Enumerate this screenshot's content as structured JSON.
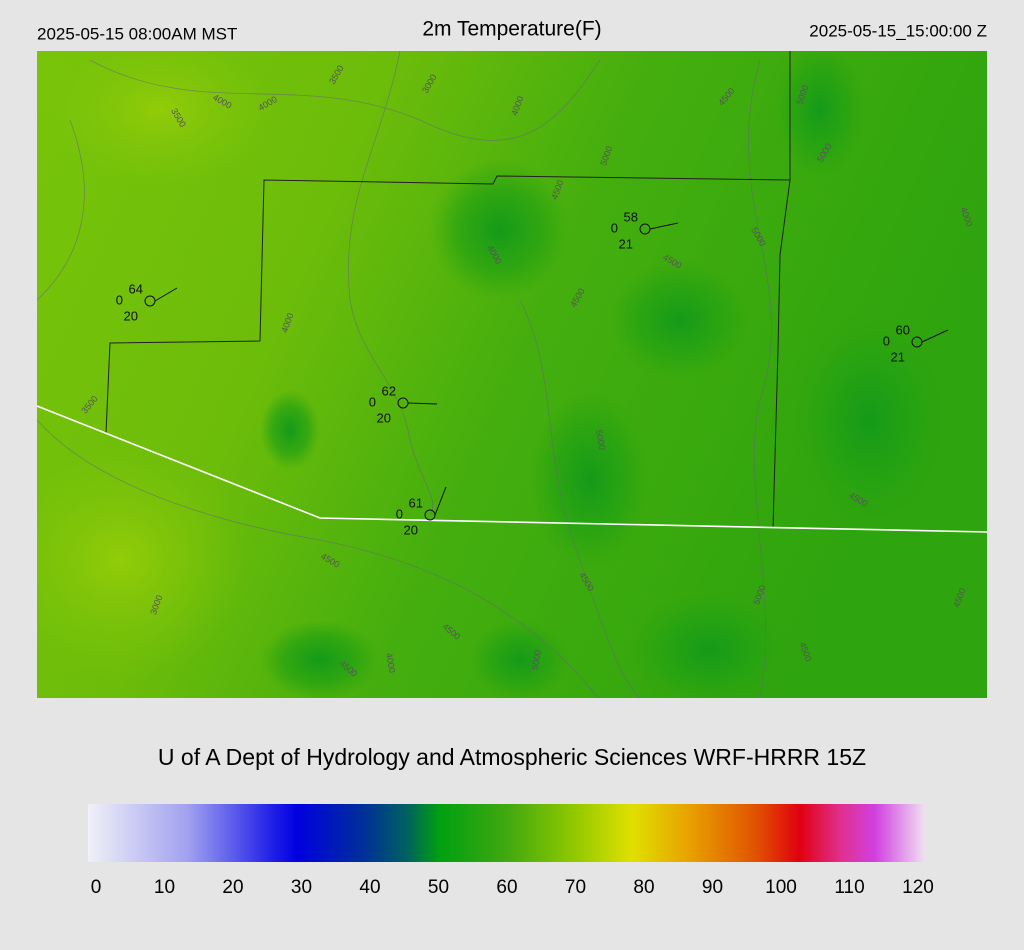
{
  "header": {
    "left": "2025-05-15 08:00AM MST",
    "title": "2m Temperature(F)",
    "right": "2025-05-15_15:00:00 Z"
  },
  "credit": "U of A Dept of Hydrology and Atmospheric Sciences WRF-HRRR 15Z",
  "colorbar": {
    "range": [
      0,
      120
    ],
    "ticks": [
      0,
      10,
      20,
      30,
      40,
      50,
      60,
      70,
      80,
      90,
      100,
      110,
      120
    ]
  },
  "stations": [
    {
      "temp": 64,
      "wind": 0,
      "dewpoint": 20
    },
    {
      "temp": 58,
      "wind": 0,
      "dewpoint": 21
    },
    {
      "temp": 62,
      "wind": 0,
      "dewpoint": 20
    },
    {
      "temp": 61,
      "wind": 0,
      "dewpoint": 20
    },
    {
      "temp": 60,
      "wind": 0,
      "dewpoint": 21
    }
  ],
  "contour_labels": [
    "3500",
    "4000",
    "4000",
    "3500",
    "3000",
    "4000",
    "4500",
    "5000",
    "5000",
    "5000",
    "4000",
    "4500",
    "4000",
    "4500",
    "4000",
    "3500",
    "3000",
    "4500",
    "4500",
    "4500",
    "4000",
    "5000",
    "4500",
    "4500",
    "4500",
    "5000",
    "4500",
    "5000",
    "5000",
    "4500"
  ]
}
